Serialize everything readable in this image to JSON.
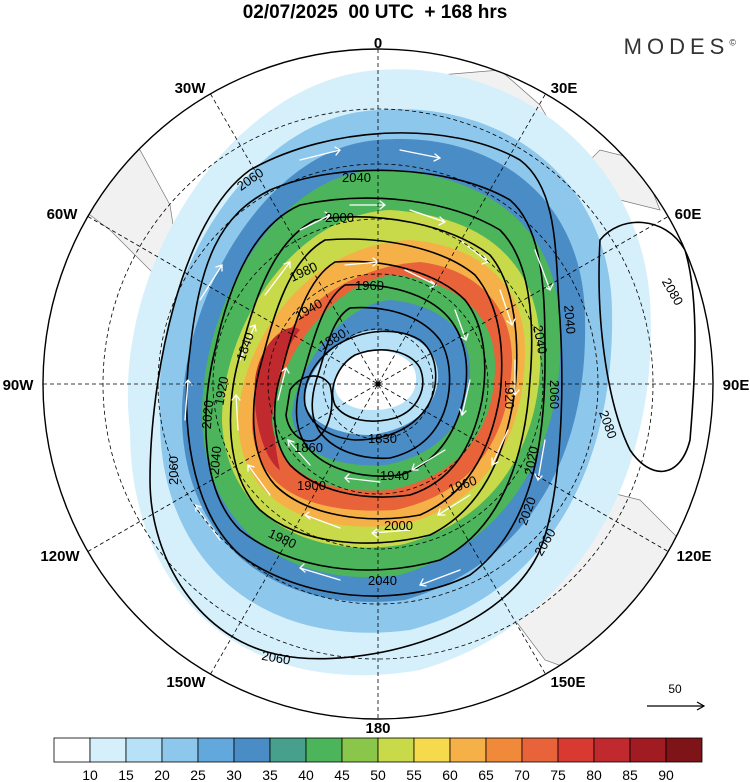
{
  "title": "02/07/2025  00 UTC  + 168 hrs",
  "brand": "MODES",
  "brand_mark": "©",
  "longitude_labels": {
    "lon_0": "0",
    "lon_30e": "30E",
    "lon_60e": "60E",
    "lon_90e": "90E",
    "lon_120e": "120E",
    "lon_150e": "150E",
    "lon_180": "180",
    "lon_150w": "150W",
    "lon_120w": "120W",
    "lon_90w": "90W",
    "lon_60w": "60W",
    "lon_30w": "30W"
  },
  "contour_labels": [
    "2060",
    "2040",
    "2000",
    "1980",
    "1960",
    "1940",
    "1880",
    "1920",
    "1840",
    "1860",
    "1830",
    "1900",
    "1940",
    "1960",
    "2000",
    "2040",
    "2060",
    "2020",
    "2020",
    "2040",
    "2060",
    "2040",
    "1980",
    "2080",
    "2080",
    "2060",
    "2020",
    "2040",
    "2060",
    "1920"
  ],
  "colorbar": {
    "ticks": [
      "10",
      "15",
      "20",
      "25",
      "30",
      "35",
      "40",
      "45",
      "50",
      "55",
      "60",
      "65",
      "70",
      "75",
      "80",
      "85",
      "90"
    ],
    "colors": [
      "#ffffff",
      "#d6f0fb",
      "#b6e1f7",
      "#8dc7ec",
      "#63a8dc",
      "#4a8cc6",
      "#47a08c",
      "#4cb45a",
      "#8ac64a",
      "#c8d94a",
      "#f5da4e",
      "#f5b148",
      "#f08a3a",
      "#e8633a",
      "#d83a32",
      "#c02a2e",
      "#a01c22",
      "#7e1418"
    ]
  },
  "reference_vector": {
    "label": "50"
  },
  "colors": {
    "land": "#f1f1f1",
    "grid": "#000000",
    "contour": "#000000",
    "arrow": "#ffffff"
  }
}
